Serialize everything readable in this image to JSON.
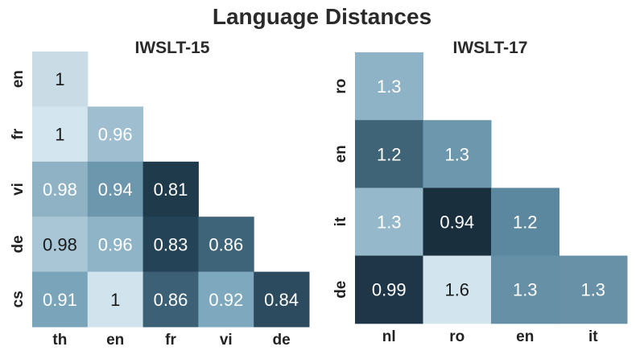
{
  "title": "Language Distances",
  "chart_data": [
    {
      "type": "heatmap",
      "title": "IWSLT-15",
      "xlabel": "",
      "ylabel": "",
      "x_categories": [
        "th",
        "en",
        "fr",
        "vi",
        "de"
      ],
      "y_categories": [
        "en",
        "fr",
        "vi",
        "de",
        "cs"
      ],
      "values": [
        [
          1,
          null,
          null,
          null,
          null
        ],
        [
          1,
          0.96,
          null,
          null,
          null
        ],
        [
          0.98,
          0.94,
          0.81,
          null,
          null
        ],
        [
          0.98,
          0.96,
          0.83,
          0.86,
          null
        ],
        [
          0.91,
          1,
          0.86,
          0.92,
          0.84
        ]
      ],
      "labels": [
        [
          "1",
          null,
          null,
          null,
          null
        ],
        [
          "1",
          "0.96",
          null,
          null,
          null
        ],
        [
          "0.98",
          "0.94",
          "0.81",
          null,
          null
        ],
        [
          "0.98",
          "0.96",
          "0.83",
          "0.86",
          null
        ],
        [
          "0.91",
          "1",
          "0.86",
          "0.92",
          "0.84"
        ]
      ],
      "cell_colors": [
        [
          "#c9dce6",
          null,
          null,
          null,
          null
        ],
        [
          "#d3e5ee",
          "#9fbfd0",
          null,
          null,
          null
        ],
        [
          "#8fb2c4",
          "#6d97ad",
          "#1f3a4b",
          null,
          null
        ],
        [
          "#a9c6d6",
          "#90b4c7",
          "#254357",
          "#3e6479",
          null
        ],
        [
          "#7aa4ba",
          "#d1e4ee",
          "#3c6177",
          "#7ea8bd",
          "#2c4b5f"
        ]
      ],
      "text_colors": [
        [
          "#1a1a1a",
          null,
          null,
          null,
          null
        ],
        [
          "#1a1a1a",
          "#ffffff",
          null,
          null,
          null
        ],
        [
          "#ffffff",
          "#ffffff",
          "#ffffff",
          null,
          null
        ],
        [
          "#1a1a1a",
          "#ffffff",
          "#ffffff",
          "#ffffff",
          null
        ],
        [
          "#ffffff",
          "#1a1a1a",
          "#ffffff",
          "#ffffff",
          "#ffffff"
        ]
      ],
      "grid": false
    },
    {
      "type": "heatmap",
      "title": "IWSLT-17",
      "xlabel": "",
      "ylabel": "",
      "x_categories": [
        "nl",
        "ro",
        "en",
        "it"
      ],
      "y_categories": [
        "ro",
        "en",
        "it",
        "de"
      ],
      "values": [
        [
          1.3,
          null,
          null,
          null
        ],
        [
          1.2,
          1.3,
          null,
          null
        ],
        [
          1.3,
          0.94,
          1.2,
          null
        ],
        [
          0.99,
          1.6,
          1.3,
          1.3
        ]
      ],
      "labels": [
        [
          "1.3",
          null,
          null,
          null
        ],
        [
          "1.2",
          "1.3",
          null,
          null
        ],
        [
          "1.3",
          "0.94",
          "1.2",
          null
        ],
        [
          "0.99",
          "1.6",
          "1.3",
          "1.3"
        ]
      ],
      "cell_colors": [
        [
          "#8fb3c6",
          null,
          null,
          null
        ],
        [
          "#3f6478",
          "#6d97ad",
          null,
          null
        ],
        [
          "#95b8ca",
          "#1a2f3e",
          "#5c889f",
          null
        ],
        [
          "#1e3647",
          "#d2e5ef",
          "#6590a6",
          "#6891a7"
        ]
      ],
      "text_colors": [
        [
          "#ffffff",
          null,
          null,
          null
        ],
        [
          "#ffffff",
          "#ffffff",
          null,
          null
        ],
        [
          "#ffffff",
          "#ffffff",
          "#ffffff",
          null
        ],
        [
          "#ffffff",
          "#1a1a1a",
          "#ffffff",
          "#ffffff"
        ]
      ],
      "grid": false
    }
  ]
}
